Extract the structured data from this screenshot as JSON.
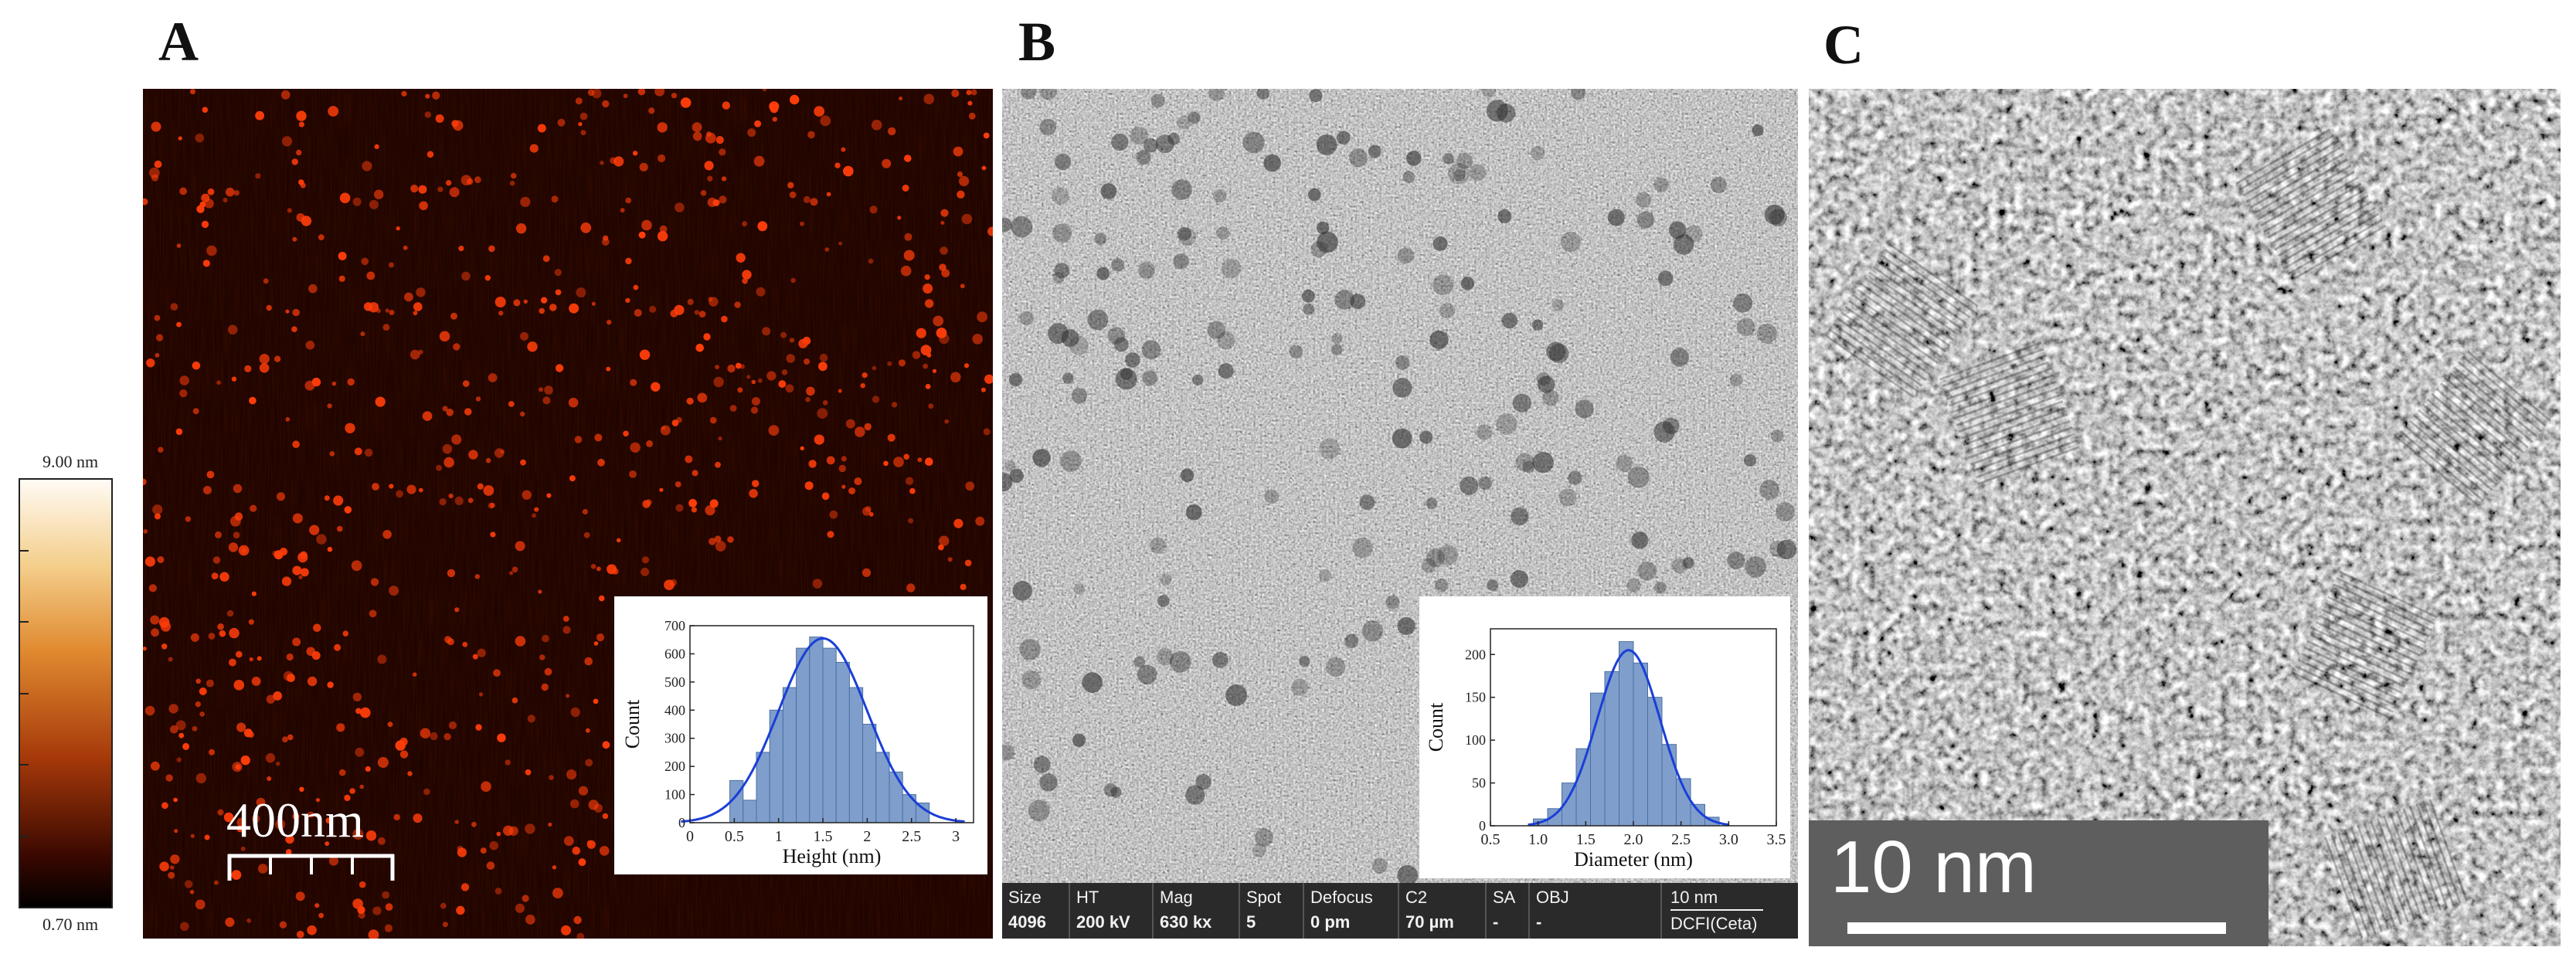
{
  "panels": {
    "a": {
      "letter": "A"
    },
    "b": {
      "letter": "B"
    },
    "c": {
      "letter": "C"
    }
  },
  "colorbar": {
    "max_label": "9.00 nm",
    "min_label": "0.70 nm"
  },
  "afm": {
    "scale_bar_label": "400nm",
    "colors": {
      "background": "#1a0200",
      "particle": "#ff3d0a"
    }
  },
  "tem": {
    "info_bar": {
      "fields": [
        {
          "name": "Size",
          "value": "4096"
        },
        {
          "name": "HT",
          "value": "200 kV"
        },
        {
          "name": "Mag",
          "value": "630 kx"
        },
        {
          "name": "Spot",
          "value": "5"
        },
        {
          "name": "Defocus",
          "value": "0 pm"
        },
        {
          "name": "C2",
          "value": "70 µm"
        },
        {
          "name": "SA",
          "value": "-"
        },
        {
          "name": "OBJ",
          "value": "-"
        }
      ],
      "scale_label": "10 nm",
      "detector": "DCFI(Ceta)"
    }
  },
  "hrtem": {
    "scale_bar_label": "10 nm"
  },
  "chart_data": [
    {
      "type": "bar",
      "xlabel": "Height (nm)",
      "ylabel": "Count",
      "x_ticks": [
        "0",
        "0.5",
        "1",
        "1.5",
        "2",
        "2.5",
        "3"
      ],
      "y_ticks": [
        "0",
        "100",
        "200",
        "300",
        "400",
        "500",
        "600",
        "700"
      ],
      "xlim": [
        0,
        3.2
      ],
      "ylim": [
        0,
        700
      ],
      "bin_width": 0.15,
      "bin_starts": [
        0.45,
        0.6,
        0.75,
        0.9,
        1.05,
        1.2,
        1.35,
        1.5,
        1.65,
        1.8,
        1.95,
        2.1,
        2.25,
        2.4,
        2.55
      ],
      "values": [
        150,
        80,
        250,
        400,
        480,
        620,
        660,
        620,
        570,
        480,
        350,
        250,
        180,
        100,
        70
      ],
      "fit": {
        "type": "gaussian",
        "mean": 1.5,
        "sigma": 0.5,
        "peak": 655
      },
      "colors": {
        "bar": "#7f9ecb",
        "bar_edge": "#4a6fa5",
        "fit": "#1a3fd6"
      }
    },
    {
      "type": "bar",
      "xlabel": "Diameter (nm)",
      "ylabel": "Count",
      "x_ticks": [
        "0.5",
        "1.0",
        "1.5",
        "2.0",
        "2.5",
        "3.0",
        "3.5"
      ],
      "y_ticks": [
        "0",
        "50",
        "100",
        "150",
        "200"
      ],
      "xlim": [
        0.5,
        3.5
      ],
      "ylim": [
        0,
        230
      ],
      "bin_width": 0.15,
      "bin_starts": [
        0.95,
        1.1,
        1.25,
        1.4,
        1.55,
        1.7,
        1.85,
        2.0,
        2.15,
        2.3,
        2.45,
        2.6,
        2.75
      ],
      "values": [
        8,
        20,
        50,
        90,
        155,
        180,
        215,
        190,
        150,
        95,
        55,
        25,
        10
      ],
      "fit": {
        "type": "gaussian",
        "mean": 1.95,
        "sigma": 0.33,
        "peak": 205
      },
      "colors": {
        "bar": "#7f9ecb",
        "bar_edge": "#4a6fa5",
        "fit": "#1a3fd6"
      }
    }
  ]
}
